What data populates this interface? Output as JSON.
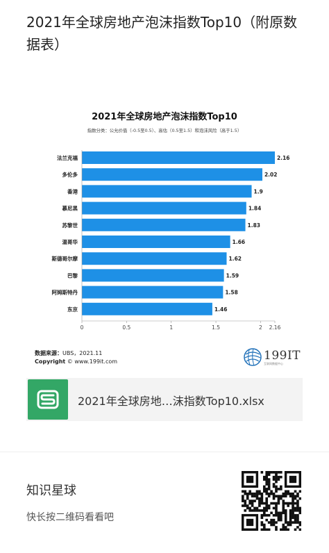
{
  "article": {
    "title": "2021年全球房地产泡沫指数Top10（附原数据表）"
  },
  "chart_data": {
    "type": "bar",
    "orientation": "horizontal",
    "title": "2021年全球房地产泡沫指数Top10",
    "subtitle": "指数分类：公允价值（-0.5至0.5）、高估（0.5至1.5）和泡沫风险（高于1.5）",
    "categories": [
      "法兰克福",
      "多伦多",
      "香港",
      "慕尼黑",
      "苏黎世",
      "温哥华",
      "斯德哥尔摩",
      "巴黎",
      "阿姆斯特丹",
      "东京"
    ],
    "values": [
      2.16,
      2.02,
      1.9,
      1.84,
      1.83,
      1.66,
      1.62,
      1.59,
      1.58,
      1.46
    ],
    "data_labels": [
      "2.16",
      "2.02",
      "1.9",
      "1.84",
      "1.83",
      "1.66",
      "1.62",
      "1.59",
      "1.58",
      "1.46"
    ],
    "xticks": [
      "0",
      "0.5",
      "1",
      "1.5",
      "2",
      "2.16"
    ],
    "xlim": [
      0,
      2.16
    ],
    "grid": false,
    "bar_color": "#1e90e6"
  },
  "chart_footer": {
    "source_label": "数据来源：",
    "source_value": "UBS，2021.11",
    "copyright_label": "Copyright",
    "copyright_value": "© www.199it.com",
    "logo_text": "199IT",
    "logo_sub": "互联网数据中心"
  },
  "file": {
    "icon": "spreadsheet-s-icon",
    "icon_color": "#33a766",
    "name": "2021年全球房地…沫指数Top10.xlsx"
  },
  "planet": {
    "title": "知识星球",
    "subtitle": "快长按二维码看看吧"
  }
}
